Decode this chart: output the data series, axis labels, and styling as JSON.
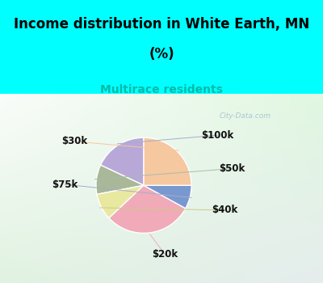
{
  "title_line1": "Income distribution in White Earth, MN",
  "title_line2": "(%)",
  "subtitle": "Multirace residents",
  "title_color": "#000000",
  "subtitle_color": "#00bbaa",
  "bg_top_color": "#00ffff",
  "watermark": "City-Data.com",
  "labels": [
    "$100k",
    "$50k",
    "$40k",
    "$20k",
    "$75k",
    "$30k"
  ],
  "sizes": [
    18,
    10,
    9,
    30,
    8,
    25
  ],
  "colors": [
    "#b8a8d8",
    "#a8b898",
    "#e8e8a0",
    "#f0aab8",
    "#7898d0",
    "#f5c8a0"
  ],
  "label_line_colors": [
    "#aaaacc",
    "#aabbaa",
    "#cccc88",
    "#f0aab8",
    "#aaaacc",
    "#f5c8a0"
  ],
  "title_fontsize": 12,
  "subtitle_fontsize": 10,
  "label_fontsize": 8.5
}
